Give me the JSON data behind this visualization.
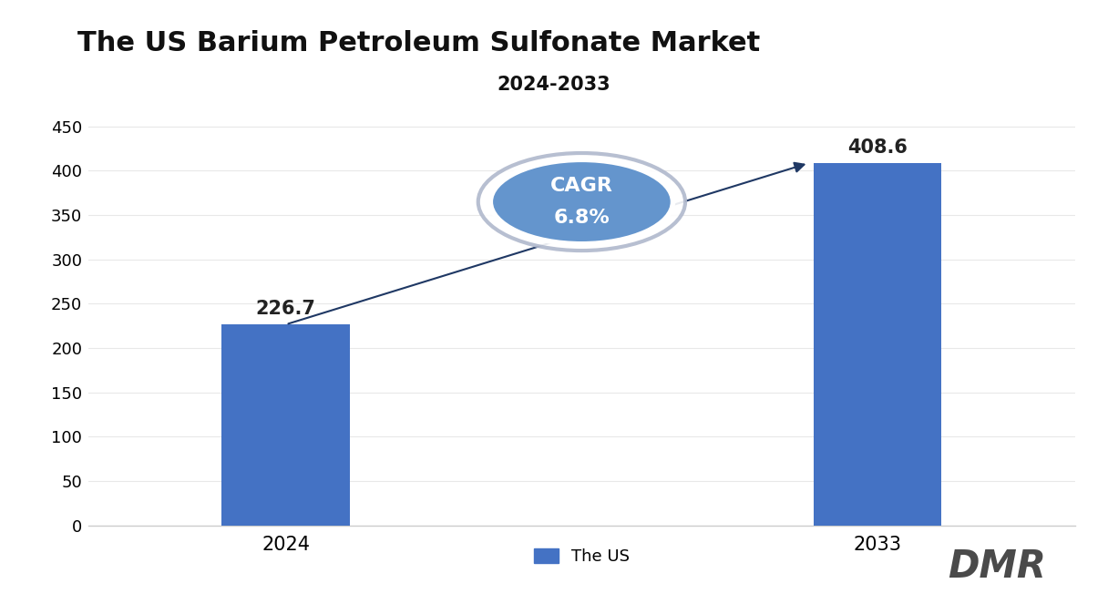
{
  "title": "The US Barium Petroleum Sulfonate Market",
  "subtitle": "2024-2033",
  "categories": [
    "2024",
    "2033"
  ],
  "values": [
    226.7,
    408.6
  ],
  "bar_color": "#4472C4",
  "ylim": [
    0,
    470
  ],
  "yticks": [
    0,
    50,
    100,
    150,
    200,
    250,
    300,
    350,
    400,
    450
  ],
  "legend_label": "The US",
  "cagr_text_line1": "CAGR",
  "cagr_text_line2": "6.8%",
  "arrow_color": "#1F3864",
  "ellipse_face_color": "#6495CD",
  "ellipse_edge_color_inner": "#FFFFFF",
  "ellipse_edge_color_outer": "#AAAACC",
  "title_fontsize": 22,
  "subtitle_fontsize": 15,
  "tick_fontsize": 13,
  "label_fontsize": 13,
  "bar_label_fontsize": 14,
  "background_color": "#FFFFFF",
  "grid_color": "#E8E8E8",
  "bar_positions": [
    0.2,
    0.8
  ],
  "bar_width": 0.13,
  "xlim": [
    0,
    1
  ]
}
